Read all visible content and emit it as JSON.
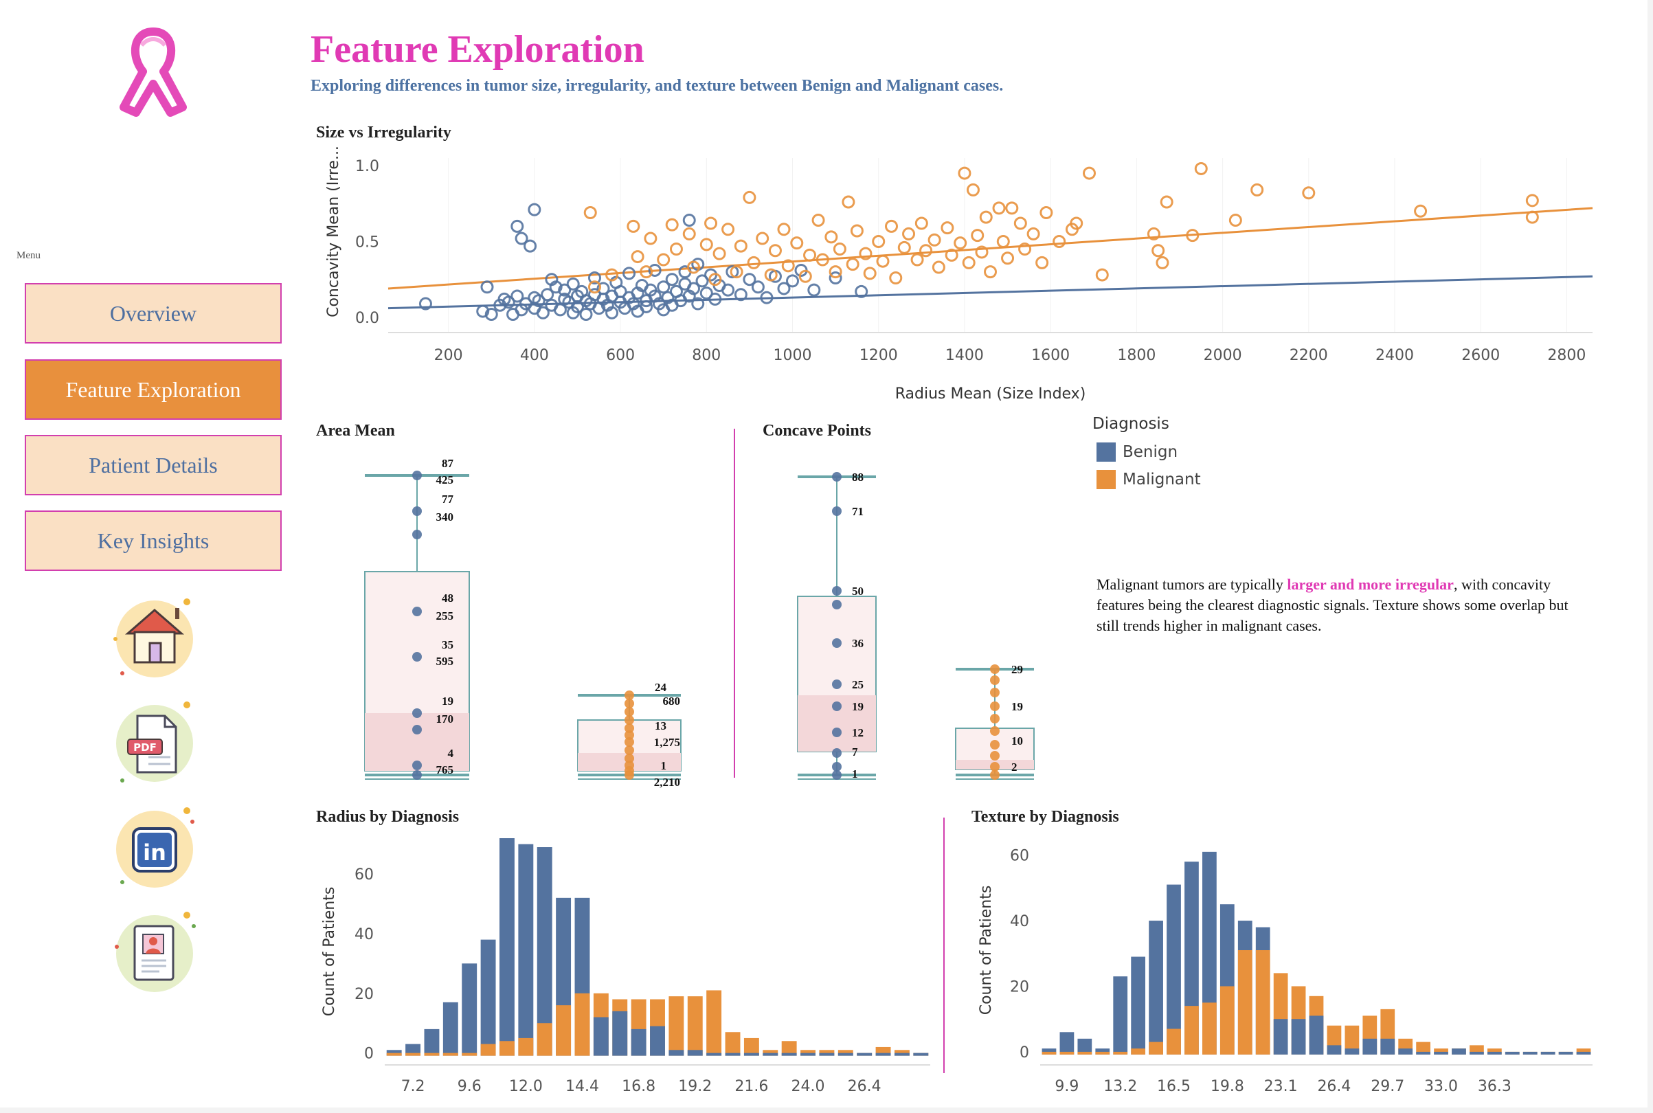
{
  "sidebar": {
    "menu_label": "Menu",
    "nav": [
      "Overview",
      "Feature Exploration",
      "Patient Details",
      "Key Insights"
    ],
    "active": "Feature Exploration",
    "icons": [
      "home-icon",
      "pdf-icon",
      "linkedin-icon",
      "resume-icon"
    ],
    "pdf_badge": "PDF",
    "linkedin_text": "in"
  },
  "header": {
    "title": "Feature Exploration",
    "subtitle": "Exploring differences in tumor size, irregularity, and texture between Benign and Malignant cases."
  },
  "colors": {
    "benign": "#54739f",
    "malignant": "#e8913c",
    "accent": "#e03ab4",
    "nav_bg": "#fae0c4"
  },
  "legend": {
    "title": "Diagnosis",
    "items": [
      "Benign",
      "Malignant"
    ]
  },
  "insight": {
    "before": "Malignant tumors are typically ",
    "highlight": "larger and more irregular",
    "after": ", with concavity features being the clearest diagnostic signals. Texture shows some overlap but still trends higher in malignant cases."
  },
  "sections": {
    "scatter": "Size vs Irregularity",
    "area": "Area Mean",
    "concave": "Concave Points",
    "radius": "Radius by Diagnosis",
    "texture": "Texture by Diagnosis"
  },
  "chart_data": [
    {
      "type": "scatter",
      "title": "Size vs Irregularity",
      "xlabel": "Radius Mean (Size Index)",
      "ylabel": "Concavity Mean (Irre...",
      "xticks": [
        200,
        400,
        600,
        800,
        1000,
        1200,
        1400,
        1600,
        1800,
        2000,
        2200,
        2400,
        2600,
        2800
      ],
      "yticks": [
        0.0,
        0.5,
        1.0
      ],
      "xlim": [
        60,
        2860
      ],
      "ylim": [
        -0.1,
        1.05
      ],
      "trend_lines": {
        "Benign": [
          [
            60,
            0.06
          ],
          [
            2860,
            0.27
          ]
        ],
        "Malignant": [
          [
            60,
            0.19
          ],
          [
            2860,
            0.72
          ]
        ]
      },
      "series": [
        {
          "name": "Benign",
          "points": [
            [
              147,
              0.09
            ],
            [
              280,
              0.04
            ],
            [
              290,
              0.2
            ],
            [
              300,
              0.02
            ],
            [
              320,
              0.08
            ],
            [
              330,
              0.12
            ],
            [
              340,
              0.1
            ],
            [
              350,
              0.02
            ],
            [
              360,
              0.14
            ],
            [
              360,
              0.6
            ],
            [
              370,
              0.52
            ],
            [
              370,
              0.05
            ],
            [
              380,
              0.09
            ],
            [
              390,
              0.47
            ],
            [
              400,
              0.71
            ],
            [
              400,
              0.13
            ],
            [
              400,
              0.06
            ],
            [
              410,
              0.11
            ],
            [
              420,
              0.03
            ],
            [
              430,
              0.15
            ],
            [
              440,
              0.08
            ],
            [
              440,
              0.25
            ],
            [
              450,
              0.2
            ],
            [
              460,
              0.05
            ],
            [
              470,
              0.12
            ],
            [
              470,
              0.18
            ],
            [
              480,
              0.1
            ],
            [
              490,
              0.22
            ],
            [
              490,
              0.03
            ],
            [
              500,
              0.14
            ],
            [
              500,
              0.07
            ],
            [
              510,
              0.17
            ],
            [
              520,
              0.11
            ],
            [
              520,
              0.02
            ],
            [
              530,
              0.09
            ],
            [
              540,
              0.15
            ],
            [
              540,
              0.26
            ],
            [
              550,
              0.06
            ],
            [
              560,
              0.12
            ],
            [
              560,
              0.19
            ],
            [
              570,
              0.08
            ],
            [
              580,
              0.14
            ],
            [
              580,
              0.03
            ],
            [
              590,
              0.23
            ],
            [
              600,
              0.1
            ],
            [
              600,
              0.17
            ],
            [
              610,
              0.06
            ],
            [
              620,
              0.13
            ],
            [
              620,
              0.29
            ],
            [
              630,
              0.09
            ],
            [
              640,
              0.16
            ],
            [
              640,
              0.04
            ],
            [
              650,
              0.21
            ],
            [
              660,
              0.11
            ],
            [
              660,
              0.07
            ],
            [
              670,
              0.18
            ],
            [
              680,
              0.14
            ],
            [
              680,
              0.31
            ],
            [
              690,
              0.09
            ],
            [
              700,
              0.2
            ],
            [
              700,
              0.05
            ],
            [
              710,
              0.13
            ],
            [
              720,
              0.25
            ],
            [
              720,
              0.08
            ],
            [
              730,
              0.17
            ],
            [
              740,
              0.11
            ],
            [
              750,
              0.22
            ],
            [
              750,
              0.3
            ],
            [
              760,
              0.14
            ],
            [
              760,
              0.64
            ],
            [
              770,
              0.19
            ],
            [
              780,
              0.09
            ],
            [
              780,
              0.35
            ],
            [
              790,
              0.24
            ],
            [
              800,
              0.16
            ],
            [
              810,
              0.28
            ],
            [
              820,
              0.12
            ],
            [
              830,
              0.21
            ],
            [
              850,
              0.18
            ],
            [
              860,
              0.3
            ],
            [
              880,
              0.15
            ],
            [
              900,
              0.25
            ],
            [
              920,
              0.2
            ],
            [
              940,
              0.13
            ],
            [
              960,
              0.27
            ],
            [
              980,
              0.19
            ],
            [
              1000,
              0.24
            ],
            [
              1020,
              0.31
            ],
            [
              1050,
              0.18
            ],
            [
              1100,
              0.26
            ],
            [
              1160,
              0.17
            ]
          ]
        },
        {
          "name": "Malignant",
          "points": [
            [
              530,
              0.69
            ],
            [
              540,
              0.2
            ],
            [
              580,
              0.28
            ],
            [
              630,
              0.6
            ],
            [
              640,
              0.4
            ],
            [
              660,
              0.3
            ],
            [
              670,
              0.52
            ],
            [
              700,
              0.38
            ],
            [
              720,
              0.61
            ],
            [
              730,
              0.45
            ],
            [
              760,
              0.55
            ],
            [
              770,
              0.33
            ],
            [
              800,
              0.48
            ],
            [
              810,
              0.62
            ],
            [
              820,
              0.25
            ],
            [
              830,
              0.42
            ],
            [
              850,
              0.58
            ],
            [
              870,
              0.3
            ],
            [
              880,
              0.47
            ],
            [
              900,
              0.79
            ],
            [
              910,
              0.36
            ],
            [
              930,
              0.52
            ],
            [
              950,
              0.28
            ],
            [
              960,
              0.44
            ],
            [
              980,
              0.58
            ],
            [
              990,
              0.34
            ],
            [
              1010,
              0.49
            ],
            [
              1030,
              0.27
            ],
            [
              1040,
              0.41
            ],
            [
              1060,
              0.64
            ],
            [
              1070,
              0.38
            ],
            [
              1090,
              0.53
            ],
            [
              1100,
              0.3
            ],
            [
              1110,
              0.45
            ],
            [
              1130,
              0.76
            ],
            [
              1140,
              0.35
            ],
            [
              1150,
              0.57
            ],
            [
              1170,
              0.42
            ],
            [
              1180,
              0.29
            ],
            [
              1200,
              0.5
            ],
            [
              1210,
              0.37
            ],
            [
              1230,
              0.6
            ],
            [
              1240,
              0.26
            ],
            [
              1260,
              0.46
            ],
            [
              1270,
              0.55
            ],
            [
              1290,
              0.38
            ],
            [
              1300,
              0.62
            ],
            [
              1310,
              0.44
            ],
            [
              1330,
              0.51
            ],
            [
              1340,
              0.33
            ],
            [
              1360,
              0.59
            ],
            [
              1370,
              0.41
            ],
            [
              1390,
              0.49
            ],
            [
              1400,
              0.95
            ],
            [
              1410,
              0.36
            ],
            [
              1420,
              0.84
            ],
            [
              1430,
              0.54
            ],
            [
              1440,
              0.43
            ],
            [
              1450,
              0.66
            ],
            [
              1460,
              0.3
            ],
            [
              1480,
              0.72
            ],
            [
              1490,
              0.5
            ],
            [
              1500,
              0.39
            ],
            [
              1510,
              0.72
            ],
            [
              1530,
              0.62
            ],
            [
              1540,
              0.45
            ],
            [
              1560,
              0.55
            ],
            [
              1580,
              0.36
            ],
            [
              1590,
              0.69
            ],
            [
              1620,
              0.5
            ],
            [
              1650,
              0.58
            ],
            [
              1660,
              0.62
            ],
            [
              1690,
              0.95
            ],
            [
              1720,
              0.28
            ],
            [
              1840,
              0.55
            ],
            [
              1850,
              0.44
            ],
            [
              1860,
              0.36
            ],
            [
              1870,
              0.76
            ],
            [
              1930,
              0.54
            ],
            [
              1950,
              0.98
            ],
            [
              2030,
              0.64
            ],
            [
              2080,
              0.84
            ],
            [
              2200,
              0.82
            ],
            [
              2460,
              0.7
            ],
            [
              2720,
              0.77
            ],
            [
              2720,
              0.66
            ]
          ]
        }
      ]
    },
    {
      "type": "box",
      "title": "Area Mean",
      "series": [
        {
          "name": "Benign",
          "outlier_labels": [
            [
              "87",
              "425"
            ],
            [
              "77",
              "340"
            ],
            [
              "48",
              "255"
            ],
            [
              "35",
              "595"
            ],
            [
              "19",
              "170"
            ],
            [
              "4",
              "765"
            ]
          ]
        },
        {
          "name": "Malignant",
          "outlier_labels": [
            [
              "24",
              "680"
            ],
            [
              "13",
              "1,275"
            ],
            [
              "1",
              "2,210"
            ]
          ]
        }
      ]
    },
    {
      "type": "box",
      "title": "Concave Points",
      "series": [
        {
          "name": "Benign",
          "labels": [
            "88",
            "71",
            "50",
            "36",
            "25",
            "19",
            "12",
            "7",
            "1"
          ]
        },
        {
          "name": "Malignant",
          "labels": [
            "29",
            "19",
            "10",
            "2"
          ]
        }
      ]
    },
    {
      "type": "bar",
      "title": "Radius by Diagnosis",
      "ylabel": "Count of Patients",
      "xticks": [
        "7.2",
        "9.6",
        "12.0",
        "14.4",
        "16.8",
        "19.2",
        "21.6",
        "24.0",
        "26.4"
      ],
      "yticks": [
        0,
        20,
        40,
        60
      ],
      "ylim": [
        -4,
        72
      ],
      "series": [
        {
          "name": "Benign",
          "values": [
            1,
            3,
            8,
            17,
            30,
            38,
            72,
            70,
            69,
            52,
            52,
            12,
            14,
            8,
            9,
            1,
            1,
            0,
            0,
            0,
            0,
            0,
            0,
            0,
            0,
            0,
            0,
            0,
            0
          ]
        },
        {
          "name": "Malignant",
          "values": [
            0,
            0,
            0,
            0,
            0,
            3,
            4,
            5,
            10,
            16,
            20,
            20,
            18,
            18,
            18,
            19,
            19,
            21,
            7,
            5,
            1,
            4,
            1,
            1,
            1,
            0,
            2,
            1,
            0
          ]
        }
      ]
    },
    {
      "type": "bar",
      "title": "Texture by Diagnosis",
      "ylabel": "Count of Patients",
      "xticks": [
        "9.9",
        "13.2",
        "16.5",
        "19.8",
        "23.1",
        "26.4",
        "29.7",
        "33.0",
        "36.3"
      ],
      "yticks": [
        0,
        20,
        40,
        60
      ],
      "ylim": [
        -4,
        66
      ],
      "series": [
        {
          "name": "Benign",
          "values": [
            1,
            6,
            4,
            1,
            23,
            29,
            40,
            51,
            58,
            61,
            45,
            40,
            38,
            10,
            10,
            11,
            2,
            1,
            4,
            4,
            1,
            0,
            0,
            1,
            0,
            0,
            0,
            0,
            0,
            0,
            0
          ]
        },
        {
          "name": "Malignant",
          "values": [
            0,
            0,
            0,
            0,
            0,
            1,
            3,
            7,
            14,
            15,
            20,
            31,
            31,
            24,
            20,
            17,
            8,
            8,
            11,
            13,
            4,
            3,
            1,
            1,
            2,
            1,
            0,
            0,
            0,
            0,
            1
          ]
        }
      ]
    }
  ]
}
